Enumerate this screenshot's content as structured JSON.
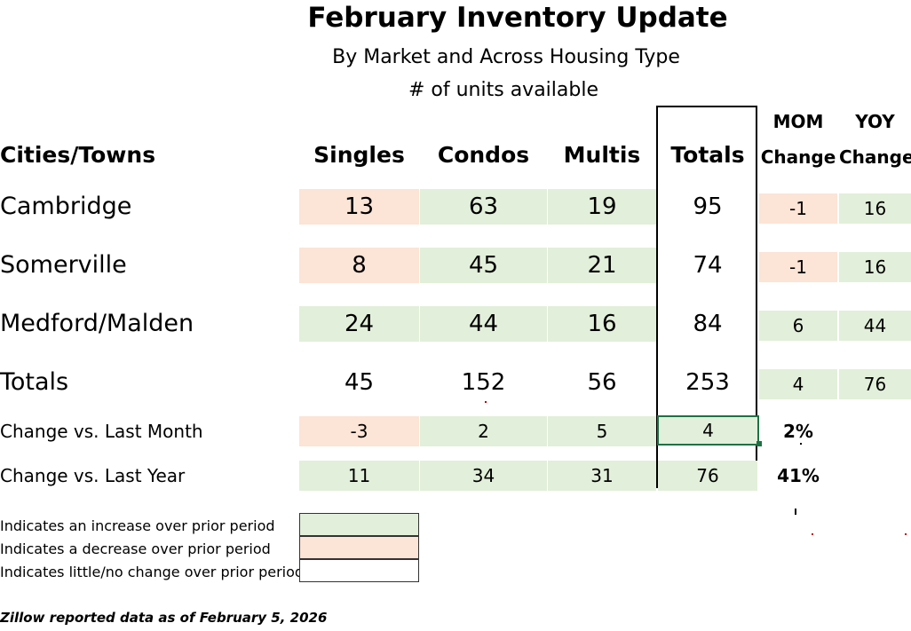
{
  "report": {
    "title": "February Inventory Update",
    "subtitle": "By Market and Across Housing Type",
    "units": "# of units available"
  },
  "headers": {
    "cities": "Cities/Towns",
    "singles": "Singles",
    "condos": "Condos",
    "multis": "Multis",
    "totals": "Totals",
    "mom_line1": "MOM",
    "mom_line2": "Change",
    "yoy_line1": "YOY",
    "yoy_line2": "Change"
  },
  "rows": [
    {
      "label": "Cambridge",
      "singles": "13",
      "condos": "63",
      "multis": "19",
      "totals": "95",
      "mom": "-1",
      "yoy": "16"
    },
    {
      "label": "Somerville",
      "singles": "8",
      "condos": "45",
      "multis": "21",
      "totals": "74",
      "mom": "-1",
      "yoy": "16"
    },
    {
      "label": "Medford/Malden",
      "singles": "24",
      "condos": "44",
      "multis": "16",
      "totals": "84",
      "mom": "6",
      "yoy": "44"
    },
    {
      "label": "Totals",
      "singles": "45",
      "condos": "152",
      "multis": "56",
      "totals": "253",
      "mom": "4",
      "yoy": "76"
    }
  ],
  "change_rows": [
    {
      "label": "Change vs. Last Month",
      "singles": "-3",
      "condos": "2",
      "multis": "5",
      "totals": "4",
      "pct": "2%"
    },
    {
      "label": "Change vs. Last Year",
      "singles": "11",
      "condos": "34",
      "multis": "31",
      "totals": "76",
      "pct": "41%"
    }
  ],
  "legend": {
    "increase": "Indicates an increase over prior period",
    "decrease": "Indicates a decrease over prior period",
    "nochange": "Indicates little/no change over prior period"
  },
  "footnote": "Zillow reported data as of February 5, 2026",
  "colors": {
    "increase": "#e2efda",
    "decrease": "#fce4d6",
    "nochange": "#ffffff",
    "selection": "#1e7145"
  }
}
